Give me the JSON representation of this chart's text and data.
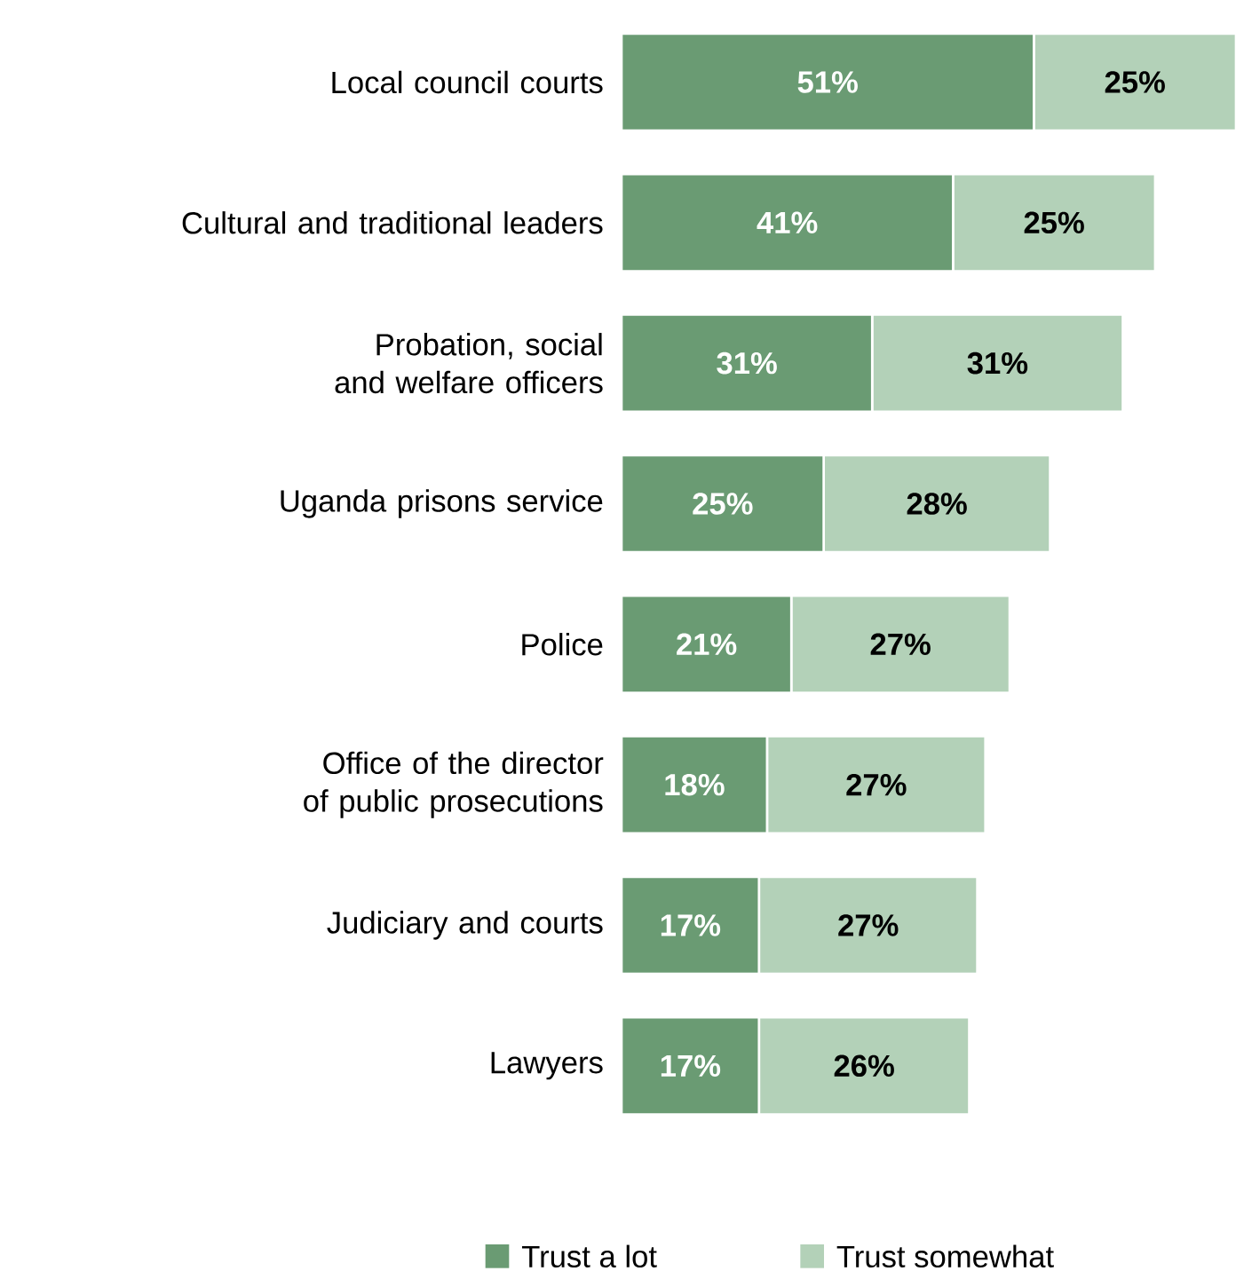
{
  "chart_data": {
    "type": "bar",
    "orientation": "horizontal",
    "stacked": true,
    "legend": "bottom",
    "categories": [
      "Local council courts",
      "Cultural and traditional leaders",
      "Probation, social and welfare officers",
      "Uganda prisons service",
      "Police",
      "Office of the director of public prosecutions",
      "Judiciary and courts",
      "Lawyers"
    ],
    "series": [
      {
        "name": "Trust a lot",
        "color": "#6a9b73",
        "values": [
          51,
          41,
          31,
          25,
          21,
          18,
          17,
          17
        ],
        "value_labels": [
          "51%",
          "41%",
          "31%",
          "25%",
          "21%",
          "18%",
          "17%",
          "17%"
        ]
      },
      {
        "name": "Trust somewhat",
        "color": "#b3d1b8",
        "values": [
          25,
          25,
          31,
          28,
          27,
          27,
          27,
          26
        ],
        "value_labels": [
          "25%",
          "25%",
          "31%",
          "28%",
          "27%",
          "27%",
          "27%",
          "26%"
        ]
      }
    ]
  }
}
